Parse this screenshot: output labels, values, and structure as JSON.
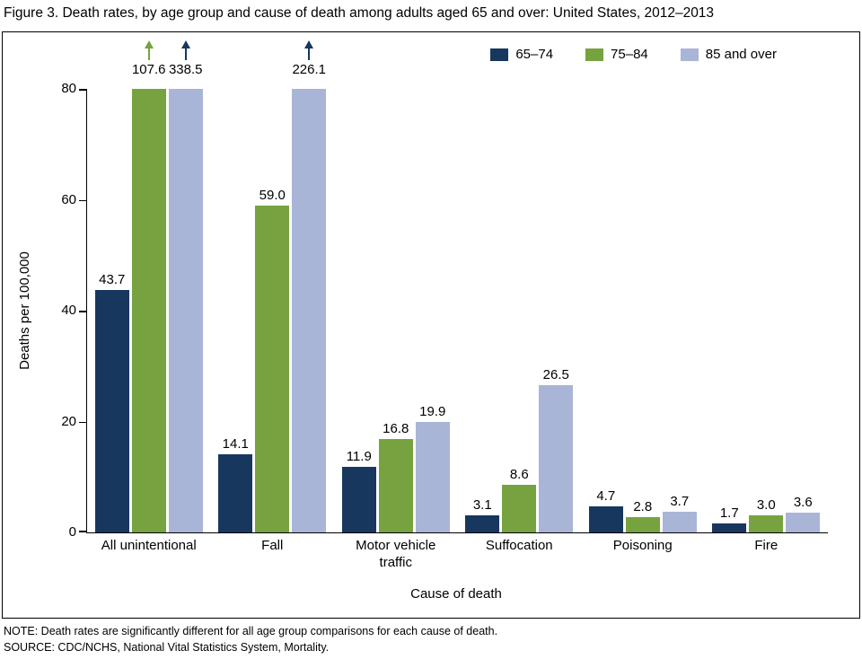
{
  "figure": {
    "title": "Figure 3. Death rates, by age group and cause of death among adults aged 65 and over: United States, 2012–2013",
    "note": "NOTE: Death rates are significantly different for all age group comparisons for each cause of death.",
    "source": "SOURCE: CDC/NCHS, National Vital Statistics System, Mortality."
  },
  "chart_data": {
    "type": "bar",
    "title": "Figure 3. Death rates, by age group and cause of death among adults aged 65 and over: United States, 2012–2013",
    "xlabel": "Cause of death",
    "ylabel": "Deaths per 100,000",
    "ylim": [
      0,
      80
    ],
    "yticks": [
      0,
      20,
      40,
      60,
      80
    ],
    "grid": false,
    "legend_position": "top-right",
    "clip_note": "bars exceeding y-axis max are clipped and marked with an upward arrow",
    "categories": [
      "All unintentional",
      "Fall",
      "Motor vehicle\ntraffic",
      "Suffocation",
      "Poisoning",
      "Fire"
    ],
    "series": [
      {
        "name": "65–74",
        "color": "#17375e",
        "arrow_color": "#17375e",
        "values": [
          43.7,
          14.1,
          11.9,
          3.1,
          4.7,
          1.7
        ]
      },
      {
        "name": "75–84",
        "color": "#76a240",
        "arrow_color": "#76a240",
        "values": [
          107.6,
          59.0,
          16.8,
          8.6,
          2.8,
          3.0
        ]
      },
      {
        "name": "85 and over",
        "color": "#a9b5d6",
        "arrow_color": "#17375e",
        "values": [
          338.5,
          226.1,
          19.9,
          26.5,
          3.7,
          3.6
        ]
      }
    ]
  }
}
